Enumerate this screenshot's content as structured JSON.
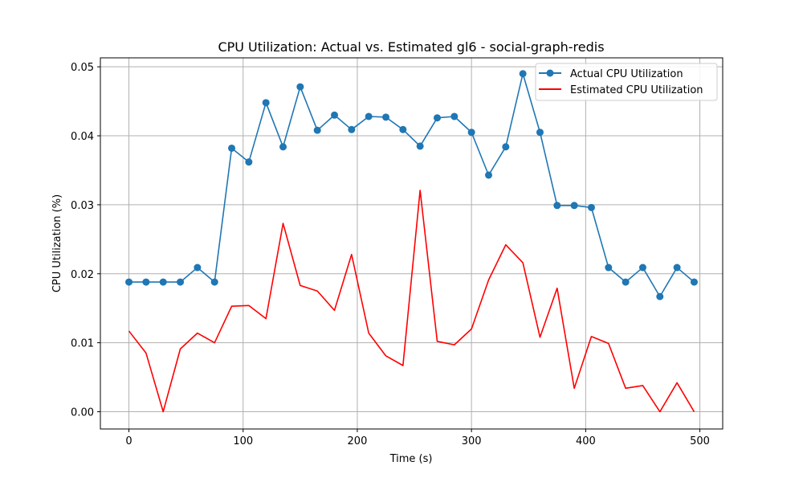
{
  "chart_data": {
    "type": "line",
    "title": "CPU Utilization: Actual vs. Estimated gl6 - social-graph-redis",
    "xlabel": "Time (s)",
    "ylabel": "CPU Utilization (%)",
    "xlim": [
      -25,
      520
    ],
    "ylim": [
      -0.0025,
      0.0513
    ],
    "xticks": [
      0,
      100,
      200,
      300,
      400,
      500
    ],
    "yticks": [
      0.0,
      0.01,
      0.02,
      0.03,
      0.04,
      0.05
    ],
    "ytick_labels": [
      "0.00",
      "0.01",
      "0.02",
      "0.03",
      "0.04",
      "0.05"
    ],
    "grid": true,
    "legend_position": "top-right",
    "x": [
      0,
      15,
      30,
      45,
      60,
      75,
      90,
      105,
      120,
      135,
      150,
      165,
      180,
      195,
      210,
      225,
      240,
      255,
      270,
      285,
      300,
      315,
      330,
      345,
      360,
      375,
      390,
      405,
      420,
      435,
      450,
      465,
      480,
      495
    ],
    "series": [
      {
        "name": "Actual CPU Utilization",
        "color": "#1f77b4",
        "marker": "circle",
        "values": [
          0.0188,
          0.0188,
          0.0188,
          0.0188,
          0.0209,
          0.0188,
          0.0382,
          0.0362,
          0.0448,
          0.0384,
          0.0471,
          0.0408,
          0.043,
          0.0409,
          0.0428,
          0.0427,
          0.0409,
          0.0385,
          0.0426,
          0.0428,
          0.0405,
          0.0343,
          0.0384,
          0.049,
          0.0405,
          0.0299,
          0.0299,
          0.0296,
          0.0209,
          0.0188,
          0.0209,
          0.0167,
          0.0209,
          0.0188
        ]
      },
      {
        "name": "Estimated CPU Utilization",
        "color": "#ff0000",
        "marker": "none",
        "values": [
          0.0117,
          0.0085,
          0.0,
          0.0091,
          0.0114,
          0.01,
          0.0153,
          0.0154,
          0.0135,
          0.0273,
          0.0183,
          0.0175,
          0.0147,
          0.0228,
          0.0114,
          0.0081,
          0.0067,
          0.0321,
          0.0102,
          0.0097,
          0.012,
          0.0191,
          0.0242,
          0.0216,
          0.0108,
          0.0179,
          0.0034,
          0.0109,
          0.0099,
          0.0034,
          0.0038,
          0.0,
          0.0042,
          0.0
        ]
      }
    ]
  }
}
